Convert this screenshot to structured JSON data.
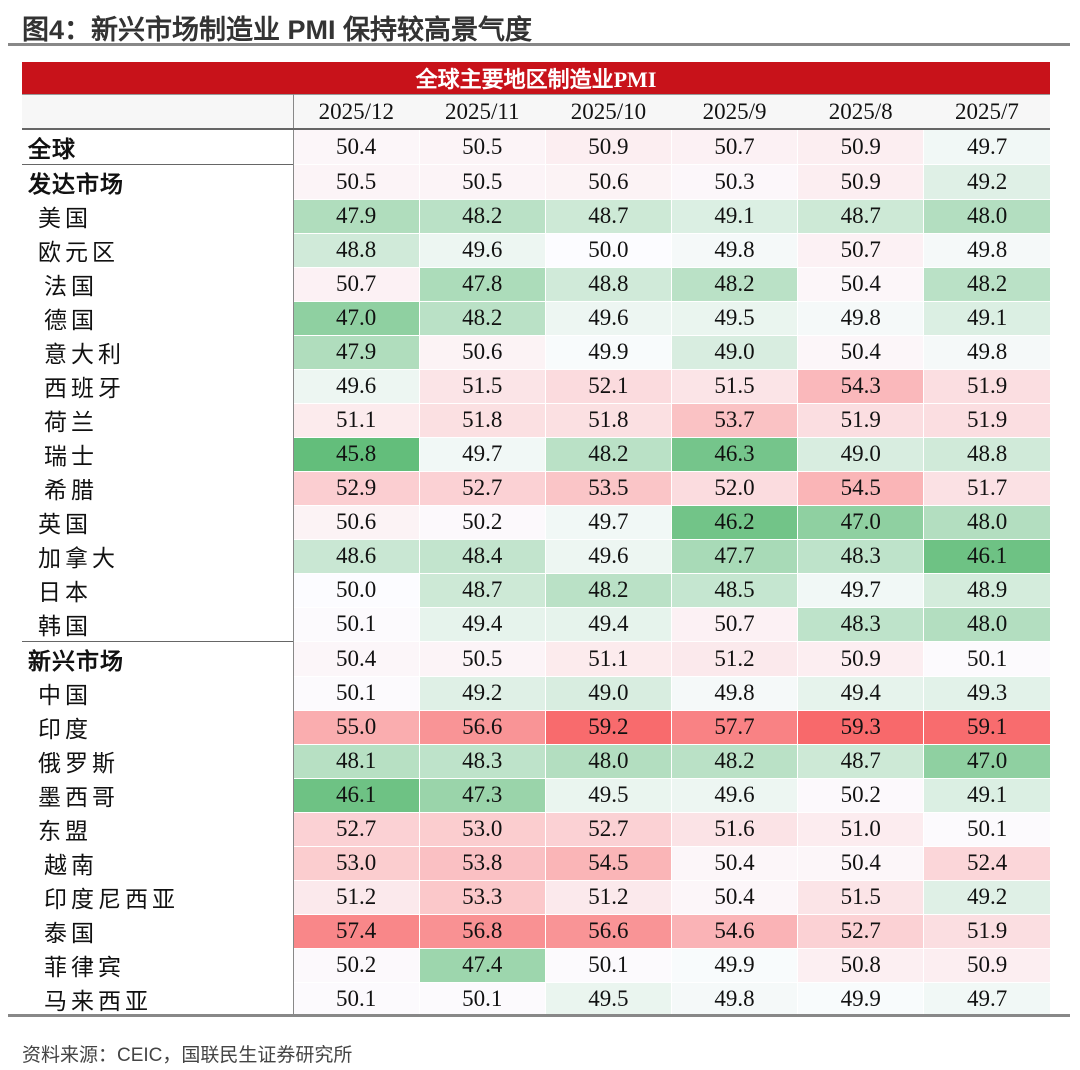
{
  "header": {
    "title": "图4：新兴市场制造业 PMI 保持较高景气度"
  },
  "table": {
    "title": "全球主要地区制造业PMI",
    "columns": [
      "2025/12",
      "2025/11",
      "2025/10",
      "2025/9",
      "2025/8",
      "2025/7"
    ],
    "rows": [
      {
        "name": "全球",
        "values": [
          50.4,
          50.5,
          50.9,
          50.7,
          50.9,
          49.7
        ]
      },
      {
        "name": "发达市场",
        "values": [
          50.5,
          50.5,
          50.6,
          50.3,
          50.9,
          49.2
        ],
        "children": [
          {
            "name": "美国",
            "values": [
              47.9,
              48.2,
              48.7,
              49.1,
              48.7,
              48.0
            ]
          },
          {
            "name": "欧元区",
            "values": [
              48.8,
              49.6,
              50.0,
              49.8,
              50.7,
              49.8
            ],
            "children": [
              {
                "name": "法国",
                "values": [
                  50.7,
                  47.8,
                  48.8,
                  48.2,
                  50.4,
                  48.2
                ]
              },
              {
                "name": "德国",
                "values": [
                  47.0,
                  48.2,
                  49.6,
                  49.5,
                  49.8,
                  49.1
                ]
              },
              {
                "name": "意大利",
                "values": [
                  47.9,
                  50.6,
                  49.9,
                  49.0,
                  50.4,
                  49.8
                ]
              },
              {
                "name": "西班牙",
                "values": [
                  49.6,
                  51.5,
                  52.1,
                  51.5,
                  54.3,
                  51.9
                ]
              },
              {
                "name": "荷兰",
                "values": [
                  51.1,
                  51.8,
                  51.8,
                  53.7,
                  51.9,
                  51.9
                ]
              },
              {
                "name": "瑞士",
                "values": [
                  45.8,
                  49.7,
                  48.2,
                  46.3,
                  49.0,
                  48.8
                ]
              },
              {
                "name": "希腊",
                "values": [
                  52.9,
                  52.7,
                  53.5,
                  52.0,
                  54.5,
                  51.7
                ]
              }
            ]
          },
          {
            "name": "英国",
            "values": [
              50.6,
              50.2,
              49.7,
              46.2,
              47.0,
              48.0
            ]
          },
          {
            "name": "加拿大",
            "values": [
              48.6,
              48.4,
              49.6,
              47.7,
              48.3,
              46.1
            ]
          },
          {
            "name": "日本",
            "values": [
              50.0,
              48.7,
              48.2,
              48.5,
              49.7,
              48.9
            ]
          },
          {
            "name": "韩国",
            "values": [
              50.1,
              49.4,
              49.4,
              50.7,
              48.3,
              48.0
            ]
          }
        ]
      },
      {
        "name": "新兴市场",
        "values": [
          50.4,
          50.5,
          51.1,
          51.2,
          50.9,
          50.1
        ],
        "children": [
          {
            "name": "中国",
            "values": [
              50.1,
              49.2,
              49.0,
              49.8,
              49.4,
              49.3
            ]
          },
          {
            "name": "印度",
            "values": [
              55.0,
              56.6,
              59.2,
              57.7,
              59.3,
              59.1
            ]
          },
          {
            "name": "俄罗斯",
            "values": [
              48.1,
              48.3,
              48.0,
              48.2,
              48.7,
              47.0
            ]
          },
          {
            "name": "墨西哥",
            "values": [
              46.1,
              47.3,
              49.5,
              49.6,
              50.2,
              49.1
            ]
          },
          {
            "name": "东盟",
            "values": [
              52.7,
              53.0,
              52.7,
              51.6,
              51.0,
              50.1
            ],
            "children": [
              {
                "name": "越南",
                "values": [
                  53.0,
                  53.8,
                  54.5,
                  50.4,
                  50.4,
                  52.4
                ]
              },
              {
                "name": "印度尼西亚",
                "values": [
                  51.2,
                  53.3,
                  51.2,
                  50.4,
                  51.5,
                  49.2
                ]
              },
              {
                "name": "泰国",
                "values": [
                  57.4,
                  56.8,
                  56.6,
                  54.6,
                  52.7,
                  51.9
                ]
              },
              {
                "name": "菲律宾",
                "values": [
                  50.2,
                  47.4,
                  50.1,
                  49.9,
                  50.8,
                  50.9
                ]
              },
              {
                "name": "马来西亚",
                "values": [
                  50.1,
                  50.1,
                  49.5,
                  49.8,
                  49.9,
                  49.7
                ]
              }
            ]
          }
        ]
      }
    ]
  },
  "footer": {
    "source": "资料来源：CEIC，国联民生证券研究所"
  }
}
